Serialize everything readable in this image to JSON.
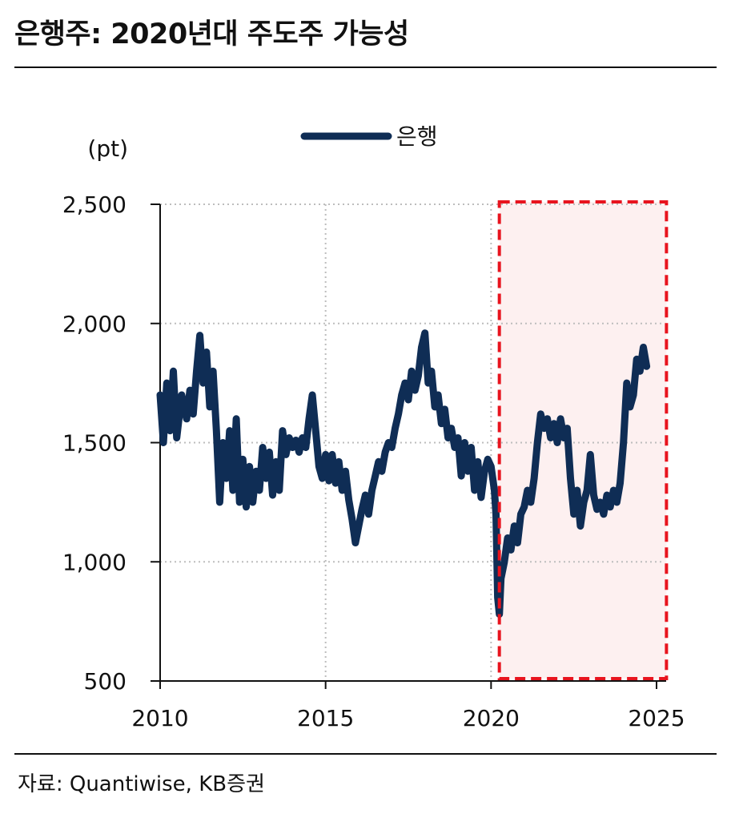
{
  "header": {
    "title": "은행주: 2020년대 주도주 가능성"
  },
  "footer": {
    "source": "자료: Quantiwise, KB증권"
  },
  "chart_data": {
    "type": "line",
    "title": "은행주: 2020년대 주도주 가능성",
    "ylabel": "(pt)",
    "xlabel": "",
    "ylim": [
      500,
      2500
    ],
    "xlim": [
      2010,
      2025
    ],
    "yticks": [
      500,
      1000,
      1500,
      2000,
      2500
    ],
    "ytick_labels": [
      "500",
      "1,000",
      "1,500",
      "2,000",
      "2,500"
    ],
    "xticks": [
      2010,
      2015,
      2020,
      2025
    ],
    "xtick_labels": [
      "2010",
      "2015",
      "2020",
      "2025"
    ],
    "grid": true,
    "legend": {
      "position": "top-center",
      "entries": [
        "은행"
      ]
    },
    "highlight": {
      "label": "",
      "x_start": 2020.25,
      "x_end": 2025.3,
      "fill": "#fdf0f0",
      "stroke": "#e8141e"
    },
    "colors": {
      "line": "#0f2d55",
      "grid": "#bdbdbd",
      "axis": "#111111"
    },
    "series": [
      {
        "name": "은행",
        "points": [
          [
            2010.0,
            1700
          ],
          [
            2010.1,
            1500
          ],
          [
            2010.2,
            1750
          ],
          [
            2010.3,
            1550
          ],
          [
            2010.4,
            1800
          ],
          [
            2010.5,
            1520
          ],
          [
            2010.65,
            1700
          ],
          [
            2010.8,
            1600
          ],
          [
            2010.9,
            1720
          ],
          [
            2011.0,
            1620
          ],
          [
            2011.1,
            1800
          ],
          [
            2011.2,
            1950
          ],
          [
            2011.3,
            1750
          ],
          [
            2011.4,
            1880
          ],
          [
            2011.5,
            1650
          ],
          [
            2011.6,
            1800
          ],
          [
            2011.7,
            1550
          ],
          [
            2011.8,
            1250
          ],
          [
            2011.9,
            1500
          ],
          [
            2012.0,
            1350
          ],
          [
            2012.1,
            1550
          ],
          [
            2012.2,
            1300
          ],
          [
            2012.3,
            1600
          ],
          [
            2012.4,
            1250
          ],
          [
            2012.5,
            1430
          ],
          [
            2012.6,
            1230
          ],
          [
            2012.7,
            1400
          ],
          [
            2012.8,
            1250
          ],
          [
            2012.9,
            1380
          ],
          [
            2013.0,
            1300
          ],
          [
            2013.1,
            1480
          ],
          [
            2013.2,
            1350
          ],
          [
            2013.3,
            1460
          ],
          [
            2013.4,
            1280
          ],
          [
            2013.5,
            1420
          ],
          [
            2013.6,
            1300
          ],
          [
            2013.7,
            1550
          ],
          [
            2013.8,
            1450
          ],
          [
            2013.9,
            1520
          ],
          [
            2014.0,
            1480
          ],
          [
            2014.1,
            1510
          ],
          [
            2014.2,
            1460
          ],
          [
            2014.3,
            1520
          ],
          [
            2014.4,
            1480
          ],
          [
            2014.5,
            1600
          ],
          [
            2014.6,
            1700
          ],
          [
            2014.7,
            1550
          ],
          [
            2014.8,
            1400
          ],
          [
            2014.9,
            1350
          ],
          [
            2015.0,
            1450
          ],
          [
            2015.1,
            1340
          ],
          [
            2015.2,
            1450
          ],
          [
            2015.3,
            1330
          ],
          [
            2015.4,
            1420
          ],
          [
            2015.5,
            1300
          ],
          [
            2015.6,
            1380
          ],
          [
            2015.7,
            1260
          ],
          [
            2015.8,
            1180
          ],
          [
            2015.9,
            1080
          ],
          [
            2016.0,
            1150
          ],
          [
            2016.1,
            1220
          ],
          [
            2016.2,
            1280
          ],
          [
            2016.3,
            1200
          ],
          [
            2016.4,
            1300
          ],
          [
            2016.5,
            1360
          ],
          [
            2016.6,
            1420
          ],
          [
            2016.7,
            1380
          ],
          [
            2016.8,
            1460
          ],
          [
            2016.9,
            1500
          ],
          [
            2017.0,
            1480
          ],
          [
            2017.1,
            1560
          ],
          [
            2017.2,
            1620
          ],
          [
            2017.3,
            1700
          ],
          [
            2017.4,
            1750
          ],
          [
            2017.5,
            1680
          ],
          [
            2017.6,
            1800
          ],
          [
            2017.7,
            1720
          ],
          [
            2017.8,
            1780
          ],
          [
            2017.9,
            1900
          ],
          [
            2018.0,
            1960
          ],
          [
            2018.1,
            1750
          ],
          [
            2018.2,
            1800
          ],
          [
            2018.3,
            1650
          ],
          [
            2018.4,
            1700
          ],
          [
            2018.5,
            1580
          ],
          [
            2018.6,
            1640
          ],
          [
            2018.7,
            1520
          ],
          [
            2018.8,
            1560
          ],
          [
            2018.9,
            1480
          ],
          [
            2019.0,
            1520
          ],
          [
            2019.1,
            1360
          ],
          [
            2019.2,
            1500
          ],
          [
            2019.3,
            1380
          ],
          [
            2019.4,
            1480
          ],
          [
            2019.5,
            1300
          ],
          [
            2019.6,
            1420
          ],
          [
            2019.7,
            1270
          ],
          [
            2019.8,
            1380
          ],
          [
            2019.9,
            1430
          ],
          [
            2020.0,
            1400
          ],
          [
            2020.1,
            1300
          ],
          [
            2020.15,
            1200
          ],
          [
            2020.2,
            850
          ],
          [
            2020.25,
            780
          ],
          [
            2020.3,
            930
          ],
          [
            2020.4,
            1000
          ],
          [
            2020.5,
            1100
          ],
          [
            2020.6,
            1050
          ],
          [
            2020.7,
            1150
          ],
          [
            2020.8,
            1080
          ],
          [
            2020.9,
            1200
          ],
          [
            2021.0,
            1230
          ],
          [
            2021.1,
            1300
          ],
          [
            2021.2,
            1250
          ],
          [
            2021.3,
            1350
          ],
          [
            2021.4,
            1500
          ],
          [
            2021.5,
            1620
          ],
          [
            2021.6,
            1560
          ],
          [
            2021.7,
            1600
          ],
          [
            2021.8,
            1520
          ],
          [
            2021.9,
            1580
          ],
          [
            2022.0,
            1500
          ],
          [
            2022.1,
            1600
          ],
          [
            2022.2,
            1520
          ],
          [
            2022.3,
            1560
          ],
          [
            2022.4,
            1350
          ],
          [
            2022.5,
            1200
          ],
          [
            2022.6,
            1300
          ],
          [
            2022.7,
            1150
          ],
          [
            2022.8,
            1250
          ],
          [
            2022.9,
            1300
          ],
          [
            2023.0,
            1450
          ],
          [
            2023.1,
            1280
          ],
          [
            2023.2,
            1220
          ],
          [
            2023.3,
            1250
          ],
          [
            2023.4,
            1200
          ],
          [
            2023.5,
            1280
          ],
          [
            2023.6,
            1230
          ],
          [
            2023.7,
            1300
          ],
          [
            2023.8,
            1250
          ],
          [
            2023.9,
            1330
          ],
          [
            2024.0,
            1500
          ],
          [
            2024.1,
            1750
          ],
          [
            2024.2,
            1650
          ],
          [
            2024.3,
            1700
          ],
          [
            2024.4,
            1850
          ],
          [
            2024.5,
            1800
          ],
          [
            2024.6,
            1900
          ],
          [
            2024.7,
            1820
          ]
        ]
      }
    ]
  }
}
